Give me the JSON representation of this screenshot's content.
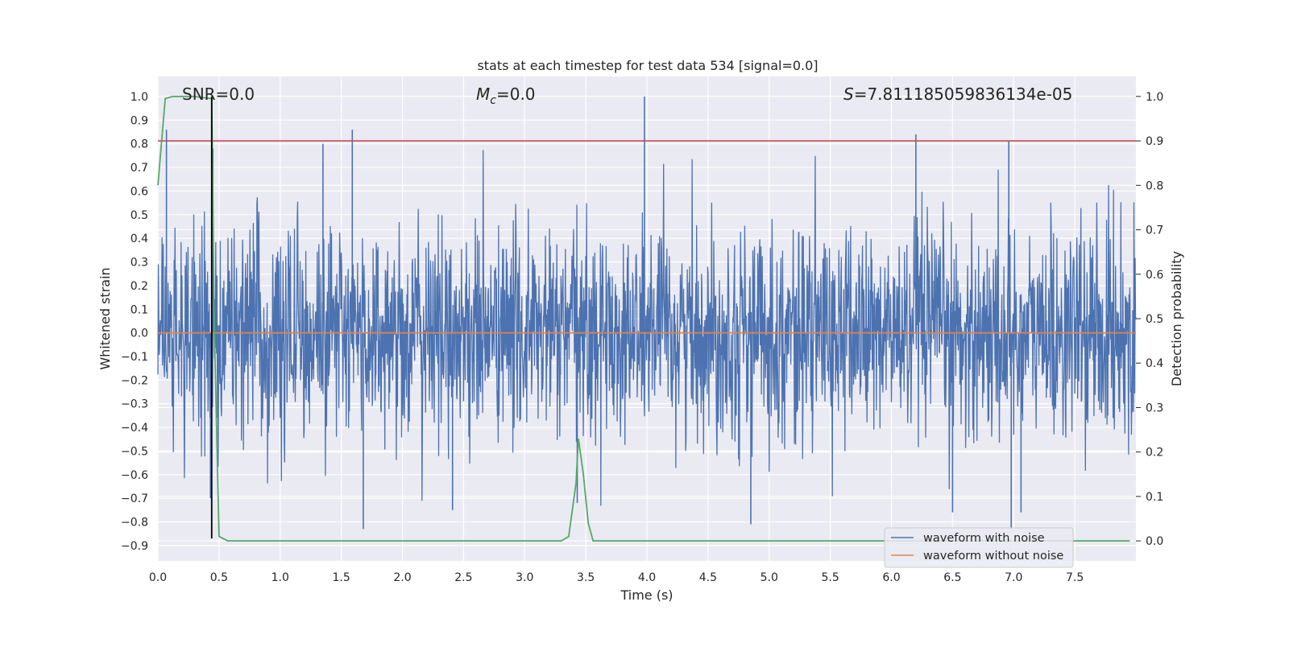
{
  "chart_data": {
    "type": "line",
    "title": "stats at each timestep for test data 534 [signal=0.0]",
    "xlabel": "Time (s)",
    "ylabel": "Whitened strain",
    "y2label": "Detection probability",
    "xlim": [
      0.0,
      8.0
    ],
    "ylim": [
      -0.965,
      1.085
    ],
    "y2lim": [
      -0.045,
      1.045
    ],
    "x_ticks": [
      0.0,
      0.5,
      1.0,
      1.5,
      2.0,
      2.5,
      3.0,
      3.5,
      4.0,
      4.5,
      5.0,
      5.5,
      6.0,
      6.5,
      7.0,
      7.5
    ],
    "x_tick_labels": [
      "0.0",
      "0.5",
      "1.0",
      "1.5",
      "2.0",
      "2.5",
      "3.0",
      "3.5",
      "4.0",
      "4.5",
      "5.0",
      "5.5",
      "6.0",
      "6.5",
      "7.0",
      "7.5"
    ],
    "y_ticks": [
      1.0,
      0.9,
      0.8,
      0.7,
      0.6,
      0.5,
      0.4,
      0.3,
      0.2,
      0.1,
      0.0,
      -0.1,
      -0.2,
      -0.3,
      -0.4,
      -0.5,
      -0.6,
      -0.7,
      -0.8,
      -0.9
    ],
    "y_tick_labels": [
      "1.0",
      "0.9",
      "0.8",
      "0.7",
      "0.6",
      "0.5",
      "0.4",
      "0.3",
      "0.2",
      "0.1",
      "0.0",
      "−0.1",
      "−0.2",
      "−0.3",
      "−0.4",
      "−0.5",
      "−0.6",
      "−0.7",
      "−0.8",
      "−0.9"
    ],
    "y2_ticks": [
      1.0,
      0.9,
      0.8,
      0.7,
      0.6,
      0.5,
      0.4,
      0.3,
      0.2,
      0.1,
      0.0
    ],
    "y2_tick_labels": [
      "1.0",
      "0.9",
      "0.8",
      "0.7",
      "0.6",
      "0.5",
      "0.4",
      "0.3",
      "0.2",
      "0.1",
      "0.0"
    ],
    "grid": true,
    "legend_placement": "lower-right",
    "annotations": {
      "snr": "SNR=0.0",
      "mc_symbol": "M",
      "mc_sub": "c",
      "mc_value": "=0.0",
      "s_symbol": "S",
      "s_value": "=7.811185059836134e-05"
    },
    "threshold": {
      "axis": "right",
      "value": 0.9,
      "color": "#c44e52"
    },
    "marker_line": {
      "x": 0.44,
      "y_bottom": -0.87,
      "y_top": 1.0,
      "color": "#000000"
    },
    "series": [
      {
        "name": "waveform with noise",
        "axis": "left",
        "color": "#4c72b0",
        "kind": "noise",
        "peaks": [
          {
            "x": 0.07,
            "y": 0.86
          },
          {
            "x": 0.45,
            "y": 0.78
          },
          {
            "x": 1.35,
            "y": 0.8
          },
          {
            "x": 1.59,
            "y": 0.86
          },
          {
            "x": 3.98,
            "y": 1.0
          },
          {
            "x": 6.2,
            "y": 0.84
          },
          {
            "x": 6.96,
            "y": 0.81
          },
          {
            "x": 1.68,
            "y": -0.83
          },
          {
            "x": 0.43,
            "y": -0.7
          },
          {
            "x": 2.41,
            "y": -0.75
          },
          {
            "x": 4.85,
            "y": -0.81
          },
          {
            "x": 6.98,
            "y": -0.83
          },
          {
            "x": 7.06,
            "y": -0.76
          },
          {
            "x": 6.5,
            "y": -0.76
          },
          {
            "x": 3.43,
            "y": -0.72
          }
        ]
      },
      {
        "name": "waveform without noise",
        "axis": "left",
        "color": "#dd8452",
        "x": [
          0.0,
          8.0
        ],
        "y": [
          0.0,
          0.0
        ]
      },
      {
        "name": "detection probability",
        "axis": "right",
        "color": "#55a868",
        "x": [
          0.0,
          0.06,
          0.12,
          0.2,
          0.3,
          0.44,
          0.46,
          0.5,
          0.57,
          1.0,
          2.0,
          3.0,
          3.3,
          3.36,
          3.42,
          3.44,
          3.48,
          3.52,
          3.56,
          3.6,
          4.0,
          5.0,
          6.0,
          7.0,
          7.95
        ],
        "y": [
          0.8,
          0.995,
          1.0,
          1.0,
          1.0,
          0.995,
          0.5,
          0.01,
          0.0,
          0.0,
          0.0,
          0.0,
          0.0,
          0.01,
          0.13,
          0.23,
          0.15,
          0.04,
          0.0,
          0.0,
          0.0,
          0.0,
          0.0,
          0.0,
          0.0
        ]
      }
    ]
  }
}
